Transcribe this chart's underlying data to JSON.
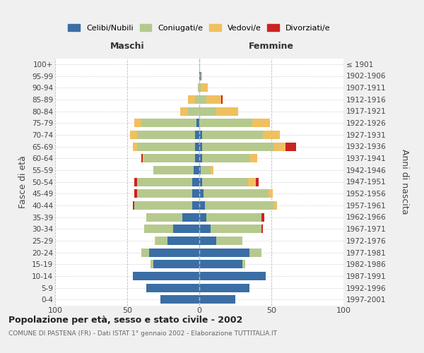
{
  "age_groups": [
    "0-4",
    "5-9",
    "10-14",
    "15-19",
    "20-24",
    "25-29",
    "30-34",
    "35-39",
    "40-44",
    "45-49",
    "50-54",
    "55-59",
    "60-64",
    "65-69",
    "70-74",
    "75-79",
    "80-84",
    "85-89",
    "90-94",
    "95-99",
    "100+"
  ],
  "birth_years": [
    "1997-2001",
    "1992-1996",
    "1987-1991",
    "1982-1986",
    "1977-1981",
    "1972-1976",
    "1967-1971",
    "1962-1966",
    "1957-1961",
    "1952-1956",
    "1947-1951",
    "1942-1946",
    "1937-1941",
    "1932-1936",
    "1927-1931",
    "1922-1926",
    "1917-1921",
    "1912-1916",
    "1907-1911",
    "1902-1906",
    "≤ 1901"
  ],
  "colors": {
    "celibi": "#3a6ea5",
    "coniugati": "#b5c98e",
    "vedovi": "#f0c060",
    "divorziati": "#cc2222"
  },
  "maschi": {
    "celibi": [
      27,
      37,
      46,
      32,
      35,
      22,
      18,
      12,
      5,
      5,
      5,
      4,
      3,
      3,
      3,
      2,
      0,
      0,
      0,
      0,
      0
    ],
    "coniugati": [
      0,
      0,
      0,
      2,
      5,
      8,
      20,
      25,
      40,
      38,
      38,
      28,
      35,
      40,
      40,
      38,
      8,
      3,
      1,
      0,
      0
    ],
    "vedovi": [
      0,
      0,
      0,
      0,
      0,
      1,
      0,
      0,
      0,
      0,
      0,
      0,
      1,
      3,
      5,
      5,
      5,
      5,
      0,
      0,
      0
    ],
    "divorziati": [
      0,
      0,
      0,
      0,
      0,
      0,
      0,
      0,
      1,
      2,
      2,
      0,
      1,
      0,
      0,
      0,
      0,
      0,
      0,
      0,
      0
    ]
  },
  "femmine": {
    "celibi": [
      25,
      35,
      46,
      30,
      35,
      12,
      8,
      5,
      4,
      3,
      2,
      1,
      2,
      2,
      2,
      0,
      0,
      0,
      0,
      1,
      0
    ],
    "coniugati": [
      0,
      0,
      0,
      2,
      8,
      18,
      35,
      38,
      48,
      45,
      32,
      7,
      33,
      50,
      42,
      37,
      12,
      5,
      1,
      0,
      0
    ],
    "vedovi": [
      0,
      0,
      0,
      0,
      0,
      0,
      0,
      0,
      2,
      3,
      5,
      2,
      5,
      8,
      12,
      12,
      15,
      10,
      5,
      1,
      0
    ],
    "divorziati": [
      0,
      0,
      0,
      0,
      0,
      0,
      1,
      2,
      0,
      0,
      2,
      0,
      0,
      7,
      0,
      0,
      0,
      1,
      0,
      0,
      0
    ]
  },
  "xlim": 100,
  "title_main": "Popolazione per età, sesso e stato civile - 2002",
  "title_sub": "COMUNE DI PASTENA (FR) - Dati ISTAT 1° gennaio 2002 - Elaborazione TUTTITALIA.IT",
  "ylabel_left": "Fasce di età",
  "ylabel_right": "Anni di nascita",
  "label_maschi": "Maschi",
  "label_femmine": "Femmine",
  "legend_labels": [
    "Celibi/Nubili",
    "Coniugati/e",
    "Vedovi/e",
    "Divorziati/e"
  ],
  "bg_color": "#f0f0f0",
  "plot_bg": "#ffffff"
}
